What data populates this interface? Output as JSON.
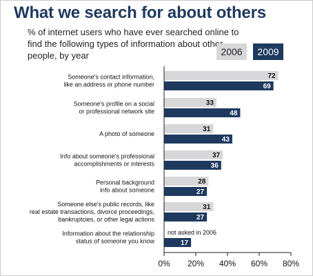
{
  "header": {
    "title": "What we search for about others",
    "subtitle": "% of internet users who have ever searched online to find the following types of information about other people, by year"
  },
  "legend": {
    "label_2006": "2006",
    "label_2009": "2009"
  },
  "colors": {
    "series_2006": "#d7d7d9",
    "series_2009": "#1f3a5f",
    "axis": "#222222",
    "title": "#1e3a5f"
  },
  "chart_data": {
    "type": "bar",
    "orientation": "horizontal",
    "title": "What we search for about others",
    "subtitle": "% of internet users who have ever searched online to find the following types of information about other people, by year",
    "categories": [
      [
        "Someone's contact information,",
        "like an address or phone number"
      ],
      [
        "Someone's profile on a social",
        "or professional network site"
      ],
      [
        "A photo of someone"
      ],
      [
        "Info about someone's professional",
        "accomplishments or interests"
      ],
      [
        "Personal background",
        "info about someone"
      ],
      [
        "Someone else's public records, like",
        "real estate transactions, divorce proceedings,",
        "bankruptcies, or other legal actions"
      ],
      [
        "Information about the relationship",
        "status of someone you know"
      ]
    ],
    "series": [
      {
        "name": "2006",
        "values": [
          72,
          33,
          31,
          37,
          28,
          31,
          null
        ]
      },
      {
        "name": "2009",
        "values": [
          69,
          48,
          43,
          36,
          27,
          27,
          17
        ]
      }
    ],
    "missing_note": "not asked in 2006",
    "xlim": [
      0,
      80
    ],
    "xticks": [
      "0%",
      "20%",
      "40%",
      "60%",
      "80%"
    ],
    "xtick_values": [
      0,
      20,
      40,
      60,
      80
    ],
    "grid": false,
    "legend_position": "top-right"
  }
}
